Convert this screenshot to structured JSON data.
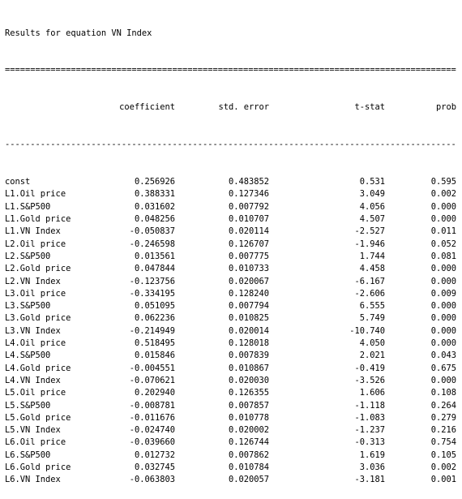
{
  "title": "Results for equation VN Index",
  "double_rule": "==============================================================================================",
  "single_rule": "----------------------------------------------------------------------------------------------",
  "headers": {
    "name": "",
    "coefficient": "coefficient",
    "std_error": "std. error",
    "t_stat": "t-stat",
    "prob": "prob"
  },
  "rows": [
    {
      "name": "const",
      "coefficient": "0.256926",
      "std_error": "0.483852",
      "t_stat": "0.531",
      "prob": "0.595"
    },
    {
      "name": "L1.Oil price",
      "coefficient": "0.388331",
      "std_error": "0.127346",
      "t_stat": "3.049",
      "prob": "0.002"
    },
    {
      "name": "L1.S&P500",
      "coefficient": "0.031602",
      "std_error": "0.007792",
      "t_stat": "4.056",
      "prob": "0.000"
    },
    {
      "name": "L1.Gold price",
      "coefficient": "0.048256",
      "std_error": "0.010707",
      "t_stat": "4.507",
      "prob": "0.000"
    },
    {
      "name": "L1.VN Index",
      "coefficient": "-0.050837",
      "std_error": "0.020114",
      "t_stat": "-2.527",
      "prob": "0.011"
    },
    {
      "name": "L2.Oil price",
      "coefficient": "-0.246598",
      "std_error": "0.126707",
      "t_stat": "-1.946",
      "prob": "0.052"
    },
    {
      "name": "L2.S&P500",
      "coefficient": "0.013561",
      "std_error": "0.007775",
      "t_stat": "1.744",
      "prob": "0.081"
    },
    {
      "name": "L2.Gold price",
      "coefficient": "0.047844",
      "std_error": "0.010733",
      "t_stat": "4.458",
      "prob": "0.000"
    },
    {
      "name": "L2.VN Index",
      "coefficient": "-0.123756",
      "std_error": "0.020067",
      "t_stat": "-6.167",
      "prob": "0.000"
    },
    {
      "name": "L3.Oil price",
      "coefficient": "-0.334195",
      "std_error": "0.128240",
      "t_stat": "-2.606",
      "prob": "0.009"
    },
    {
      "name": "L3.S&P500",
      "coefficient": "0.051095",
      "std_error": "0.007794",
      "t_stat": "6.555",
      "prob": "0.000"
    },
    {
      "name": "L3.Gold price",
      "coefficient": "0.062236",
      "std_error": "0.010825",
      "t_stat": "5.749",
      "prob": "0.000"
    },
    {
      "name": "L3.VN Index",
      "coefficient": "-0.214949",
      "std_error": "0.020014",
      "t_stat": "-10.740",
      "prob": "0.000"
    },
    {
      "name": "L4.Oil price",
      "coefficient": "0.518495",
      "std_error": "0.128018",
      "t_stat": "4.050",
      "prob": "0.000"
    },
    {
      "name": "L4.S&P500",
      "coefficient": "0.015846",
      "std_error": "0.007839",
      "t_stat": "2.021",
      "prob": "0.043"
    },
    {
      "name": "L4.Gold price",
      "coefficient": "-0.004551",
      "std_error": "0.010867",
      "t_stat": "-0.419",
      "prob": "0.675"
    },
    {
      "name": "L4.VN Index",
      "coefficient": "-0.070621",
      "std_error": "0.020030",
      "t_stat": "-3.526",
      "prob": "0.000"
    },
    {
      "name": "L5.Oil price",
      "coefficient": "0.202940",
      "std_error": "0.126355",
      "t_stat": "1.606",
      "prob": "0.108"
    },
    {
      "name": "L5.S&P500",
      "coefficient": "-0.008781",
      "std_error": "0.007857",
      "t_stat": "-1.118",
      "prob": "0.264"
    },
    {
      "name": "L5.Gold price",
      "coefficient": "-0.011676",
      "std_error": "0.010778",
      "t_stat": "-1.083",
      "prob": "0.279"
    },
    {
      "name": "L5.VN Index",
      "coefficient": "-0.024740",
      "std_error": "0.020002",
      "t_stat": "-1.237",
      "prob": "0.216"
    },
    {
      "name": "L6.Oil price",
      "coefficient": "-0.039660",
      "std_error": "0.126744",
      "t_stat": "-0.313",
      "prob": "0.754"
    },
    {
      "name": "L6.S&P500",
      "coefficient": "0.012732",
      "std_error": "0.007862",
      "t_stat": "1.619",
      "prob": "0.105"
    },
    {
      "name": "L6.Gold price",
      "coefficient": "0.032745",
      "std_error": "0.010784",
      "t_stat": "3.036",
      "prob": "0.002"
    },
    {
      "name": "L6.VN Index",
      "coefficient": "-0.063803",
      "std_error": "0.020057",
      "t_stat": "-3.181",
      "prob": "0.001"
    }
  ]
}
